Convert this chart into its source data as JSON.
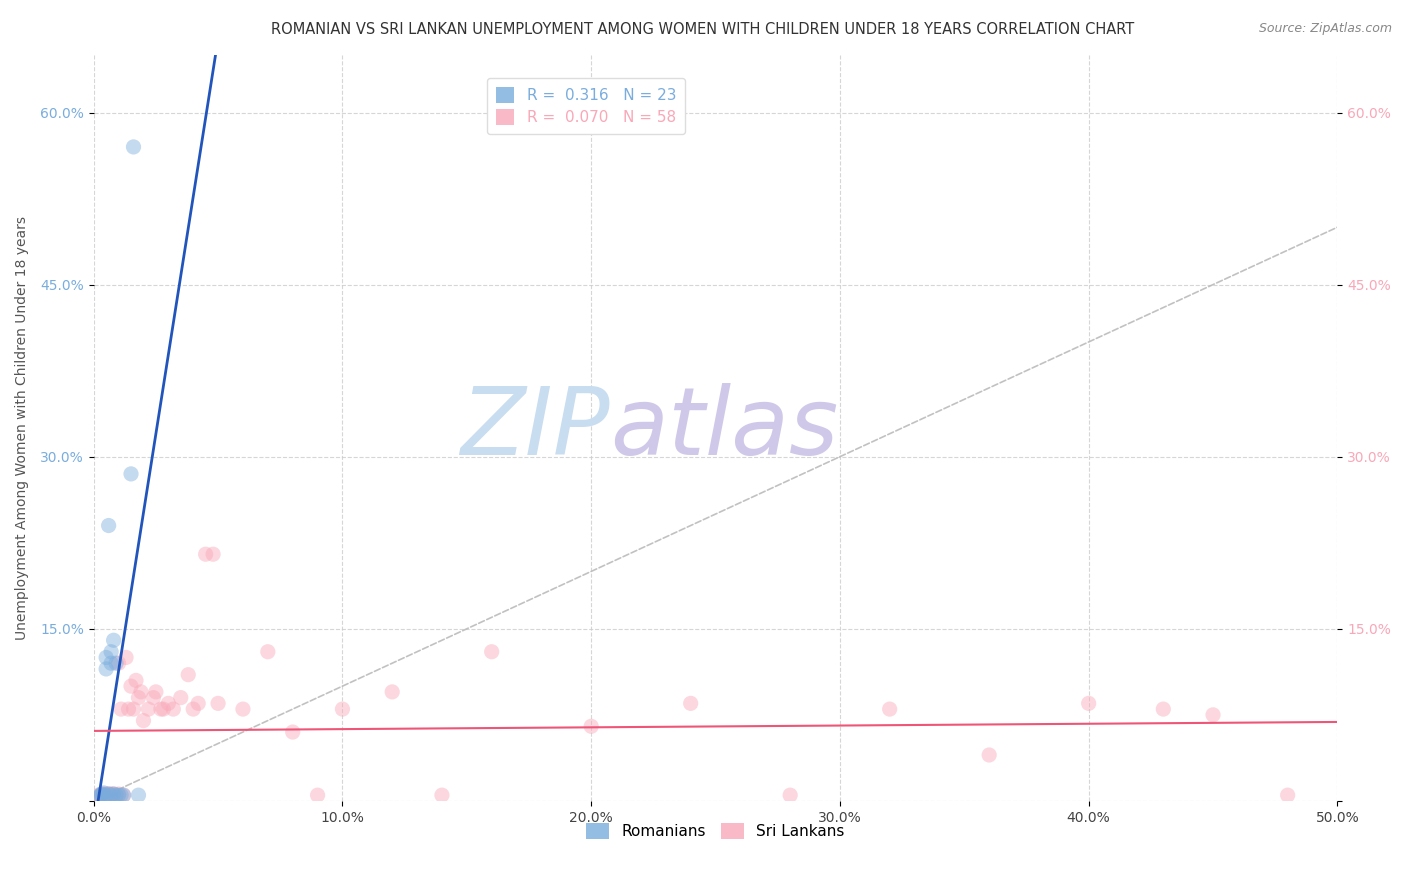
{
  "title": "ROMANIAN VS SRI LANKAN UNEMPLOYMENT AMONG WOMEN WITH CHILDREN UNDER 18 YEARS CORRELATION CHART",
  "source": "Source: ZipAtlas.com",
  "ylabel": "Unemployment Among Women with Children Under 18 years",
  "xlim": [
    0.0,
    0.5
  ],
  "ylim": [
    0.0,
    0.65
  ],
  "xticks": [
    0.0,
    0.1,
    0.2,
    0.3,
    0.4,
    0.5
  ],
  "yticks": [
    0.0,
    0.15,
    0.3,
    0.45,
    0.6
  ],
  "xtick_labels": [
    "0.0%",
    "10.0%",
    "20.0%",
    "30.0%",
    "40.0%",
    "50.0%"
  ],
  "ytick_labels": [
    "",
    "15.0%",
    "30.0%",
    "45.0%",
    "60.0%"
  ],
  "background_color": "#ffffff",
  "grid_color": "#cccccc",
  "romanian_color": "#7aaddd",
  "srilanka_color": "#f9a8b8",
  "romanian_line_color": "#2255bb",
  "srilanka_line_color": "#ee5577",
  "diagonal_color": "#bbbbbb",
  "R_romanian": 0.316,
  "N_romanian": 23,
  "R_srilanka": 0.07,
  "N_srilanka": 58,
  "romanian_x": [
    0.002,
    0.003,
    0.003,
    0.004,
    0.004,
    0.005,
    0.005,
    0.005,
    0.006,
    0.006,
    0.007,
    0.007,
    0.007,
    0.008,
    0.008,
    0.009,
    0.009,
    0.01,
    0.011,
    0.012,
    0.015,
    0.016,
    0.018
  ],
  "romanian_y": [
    0.004,
    0.005,
    0.006,
    0.005,
    0.007,
    0.005,
    0.115,
    0.125,
    0.006,
    0.24,
    0.005,
    0.12,
    0.13,
    0.006,
    0.14,
    0.005,
    0.12,
    0.005,
    0.005,
    0.005,
    0.285,
    0.57,
    0.005
  ],
  "srilanka_x": [
    0.002,
    0.003,
    0.003,
    0.004,
    0.004,
    0.005,
    0.005,
    0.005,
    0.006,
    0.006,
    0.007,
    0.007,
    0.008,
    0.008,
    0.009,
    0.01,
    0.01,
    0.011,
    0.012,
    0.013,
    0.014,
    0.015,
    0.016,
    0.017,
    0.018,
    0.019,
    0.02,
    0.022,
    0.024,
    0.025,
    0.027,
    0.028,
    0.03,
    0.032,
    0.035,
    0.038,
    0.04,
    0.042,
    0.045,
    0.048,
    0.05,
    0.06,
    0.07,
    0.08,
    0.09,
    0.1,
    0.12,
    0.14,
    0.16,
    0.2,
    0.24,
    0.28,
    0.32,
    0.36,
    0.4,
    0.43,
    0.45,
    0.48
  ],
  "srilanka_y": [
    0.005,
    0.005,
    0.005,
    0.006,
    0.005,
    0.006,
    0.005,
    0.005,
    0.006,
    0.005,
    0.006,
    0.005,
    0.006,
    0.005,
    0.005,
    0.006,
    0.12,
    0.08,
    0.005,
    0.125,
    0.08,
    0.1,
    0.08,
    0.105,
    0.09,
    0.095,
    0.07,
    0.08,
    0.09,
    0.095,
    0.08,
    0.08,
    0.085,
    0.08,
    0.09,
    0.11,
    0.08,
    0.085,
    0.215,
    0.215,
    0.085,
    0.08,
    0.13,
    0.06,
    0.005,
    0.08,
    0.095,
    0.005,
    0.13,
    0.065,
    0.085,
    0.005,
    0.08,
    0.04,
    0.085,
    0.08,
    0.075,
    0.005
  ],
  "marker_size": 120,
  "alpha": 0.45,
  "title_fontsize": 10.5,
  "source_fontsize": 9,
  "ylabel_fontsize": 10,
  "legend_fontsize": 11,
  "tick_fontsize": 10,
  "watermark_zip_color": "#c8ddf0",
  "watermark_atlas_color": "#d0c8e8"
}
